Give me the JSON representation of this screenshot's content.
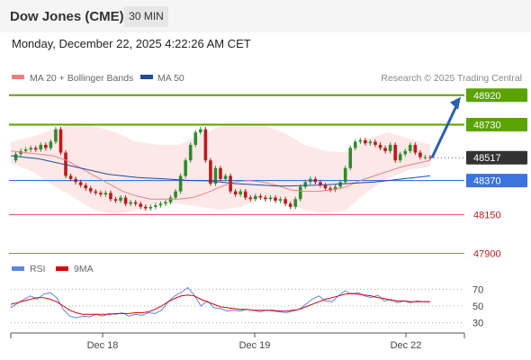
{
  "header": {
    "title": "Dow Jones (CME)",
    "timeframe": "30 MIN"
  },
  "datetime": "Monday, December 22, 2025 4:22:26 AM CET",
  "watermark": "Research © 2025 Trading Central",
  "colors": {
    "resistance": "#5aa300",
    "support": "#3b73e0",
    "bollinger_fill": "#fde8e8",
    "ma20": "#f08080",
    "ma50": "#1f4e9a",
    "rsi": "#5b86e5",
    "rsi_ma": "#e00000",
    "up": "#2e8b2e",
    "down": "#c01818",
    "current": "#333333"
  },
  "chart_data": [
    {
      "type": "candlestick",
      "legend": [
        "MA 20 + Bollinger Bands",
        "MA 50"
      ],
      "x_ticks": [
        "Dec 18",
        "Dec 19",
        "Dec 22"
      ],
      "ylim": [
        47880,
        49000
      ],
      "levels": [
        {
          "value": 48920,
          "label": "48920",
          "kind": "resistance",
          "style": "box"
        },
        {
          "value": 48730,
          "label": "48730",
          "kind": "resistance",
          "style": "box"
        },
        {
          "value": 48517,
          "label": "48517",
          "kind": "current",
          "style": "box"
        },
        {
          "value": 48370,
          "label": "48370",
          "kind": "support",
          "style": "box"
        },
        {
          "value": 48150,
          "label": "48150",
          "kind": "minor",
          "style": "text"
        },
        {
          "value": 47900,
          "label": "47900",
          "kind": "minor",
          "style": "text"
        }
      ],
      "close_series": [
        48500,
        48540,
        48560,
        48570,
        48580,
        48570,
        48600,
        48580,
        48620,
        48700,
        48550,
        48400,
        48380,
        48360,
        48340,
        48320,
        48300,
        48290,
        48280,
        48290,
        48250,
        48240,
        48260,
        48220,
        48230,
        48220,
        48200,
        48190,
        48200,
        48210,
        48220,
        48230,
        48260,
        48300,
        48400,
        48500,
        48600,
        48680,
        48700,
        48500,
        48350,
        48450,
        48380,
        48400,
        48300,
        48280,
        48300,
        48260,
        48250,
        48270,
        48260,
        48250,
        48260,
        48240,
        48250,
        48220,
        48200,
        48250,
        48330,
        48360,
        48380,
        48360,
        48340,
        48320,
        48310,
        48330,
        48360,
        48450,
        48580,
        48620,
        48630,
        48610,
        48620,
        48600,
        48580,
        48560,
        48600,
        48500,
        48540,
        48560,
        48600,
        48550,
        48520,
        48520,
        48517
      ],
      "ma20": [
        48560,
        48550,
        48540,
        48530,
        48500,
        48450,
        48400,
        48350,
        48300,
        48270,
        48250,
        48250,
        48250,
        48260,
        48290,
        48330,
        48360,
        48370,
        48360,
        48340,
        48310,
        48300,
        48300,
        48310,
        48330,
        48370,
        48400,
        48430,
        48460,
        48480,
        48500
      ],
      "ma50": [
        48530,
        48520,
        48510,
        48490,
        48470,
        48450,
        48430,
        48410,
        48400,
        48390,
        48385,
        48380,
        48375,
        48370,
        48368,
        48360,
        48350,
        48345,
        48340,
        48335,
        48335,
        48338,
        48340,
        48345,
        48350,
        48355,
        48360,
        48370,
        48380,
        48390,
        48400
      ],
      "bollinger_upper": [
        48620,
        48650,
        48700,
        48740,
        48720,
        48680,
        48620,
        48600,
        48600,
        48660,
        48720,
        48740,
        48730,
        48680,
        48600,
        48560,
        48550,
        48640,
        48680,
        48640,
        48600
      ],
      "bollinger_lower": [
        48480,
        48430,
        48340,
        48260,
        48180,
        48150,
        48180,
        48220,
        48220,
        48200,
        48180,
        48200,
        48260,
        48240,
        48180,
        48160,
        48180,
        48300,
        48380,
        48440,
        48460
      ],
      "forecast": {
        "from": 48517,
        "to": 48920
      }
    },
    {
      "type": "line",
      "legend": [
        "RSI",
        "9MA"
      ],
      "y_ticks": [
        "70",
        "50",
        "30"
      ],
      "ylim": [
        20,
        80
      ],
      "rsi": [
        48,
        53,
        58,
        62,
        58,
        64,
        66,
        60,
        46,
        38,
        36,
        38,
        37,
        40,
        38,
        41,
        40,
        42,
        38,
        40,
        39,
        42,
        41,
        45,
        55,
        62,
        66,
        72,
        63,
        50,
        56,
        48,
        47,
        44,
        45,
        44,
        46,
        45,
        43,
        45,
        44,
        43,
        42,
        44,
        46,
        52,
        58,
        62,
        56,
        55,
        62,
        68,
        64,
        66,
        62,
        60,
        63,
        56,
        58,
        54,
        56,
        54,
        56,
        55,
        55
      ],
      "rsi_ma": [
        52,
        54,
        56,
        58,
        60,
        60,
        58,
        55,
        50,
        45,
        42,
        40,
        40,
        40,
        40,
        40,
        41,
        41,
        41,
        42,
        42,
        43,
        46,
        50,
        55,
        59,
        62,
        63,
        62,
        58,
        55,
        52,
        49,
        48,
        47,
        46,
        46,
        45,
        45,
        45,
        45,
        44,
        44,
        45,
        46,
        49,
        52,
        55,
        58,
        60,
        62,
        64,
        65,
        64,
        63,
        62,
        60,
        59,
        57,
        56,
        56,
        55,
        55,
        55,
        55
      ]
    }
  ]
}
